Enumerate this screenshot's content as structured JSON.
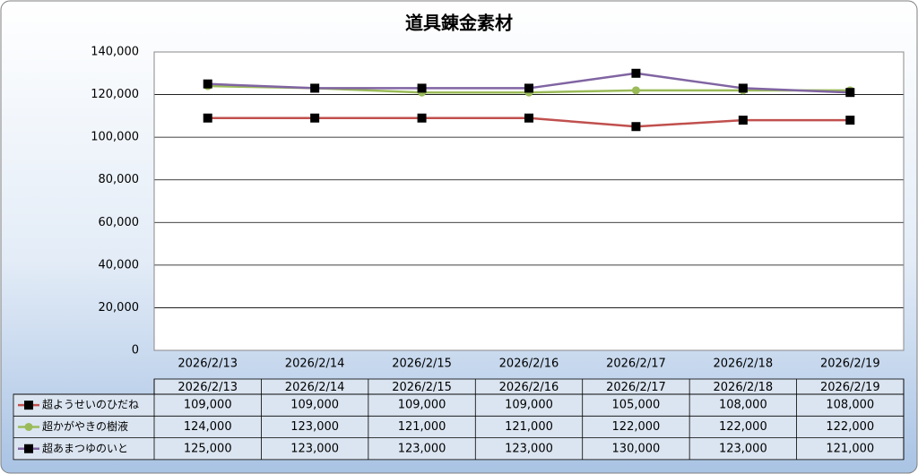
{
  "chart_data": {
    "type": "line",
    "title": "道具錬金素材",
    "categories": [
      "2026/2/13",
      "2026/2/14",
      "2026/2/15",
      "2026/2/16",
      "2026/2/17",
      "2026/2/18",
      "2026/2/19"
    ],
    "series": [
      {
        "name": "超ようせいのひだね",
        "color": "#c0504d",
        "marker_color": "#000000",
        "marker": "square",
        "values": [
          109000,
          109000,
          109000,
          109000,
          105000,
          108000,
          108000
        ],
        "value_labels": [
          "109,000",
          "109,000",
          "109,000",
          "109,000",
          "105,000",
          "108,000",
          "108,000"
        ]
      },
      {
        "name": "超かがやきの樹液",
        "color": "#9bbb59",
        "marker_color": "#9bbb59",
        "marker": "circle",
        "values": [
          124000,
          123000,
          121000,
          121000,
          122000,
          122000,
          122000
        ],
        "value_labels": [
          "124,000",
          "123,000",
          "121,000",
          "121,000",
          "122,000",
          "122,000",
          "122,000"
        ]
      },
      {
        "name": "超あまつゆのいと",
        "color": "#8064a2",
        "marker_color": "#000000",
        "marker": "square",
        "values": [
          125000,
          123000,
          123000,
          123000,
          130000,
          123000,
          121000
        ],
        "value_labels": [
          "125,000",
          "123,000",
          "123,000",
          "123,000",
          "130,000",
          "123,000",
          "121,000"
        ]
      }
    ],
    "ylim": [
      0,
      140000
    ],
    "yticks": [
      0,
      {
        "value": 20000,
        "label": "20,000"
      },
      {
        "value": 40000,
        "label": "40,000"
      },
      {
        "value": 60000,
        "label": "60,000"
      },
      {
        "value": 80000,
        "label": "80,000"
      },
      {
        "value": 100000,
        "label": "100,000"
      },
      {
        "value": 120000,
        "label": "120,000"
      },
      {
        "value": 140000,
        "label": "140,000"
      }
    ],
    "grid": true
  }
}
